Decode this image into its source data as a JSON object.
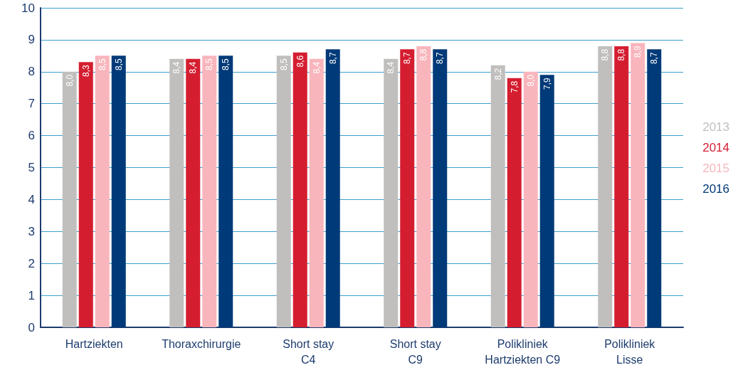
{
  "chart_data": {
    "type": "bar",
    "categories": [
      "Hartziekten",
      "Thoraxchirurgie",
      "Short stay\nC4",
      "Short stay\nC9",
      "Polikliniek\nHartziekten C9",
      "Polikliniek\nLisse"
    ],
    "series": [
      {
        "name": "2013",
        "color": "#c0bfbe",
        "values": [
          8.0,
          8.4,
          8.5,
          8.4,
          8.2,
          8.8
        ],
        "value_labels": [
          "8,0",
          "8,4",
          "8,5",
          "8,4",
          "8,2",
          "8,8"
        ]
      },
      {
        "name": "2014",
        "color": "#d41e30",
        "values": [
          8.3,
          8.4,
          8.6,
          8.7,
          7.8,
          8.8
        ],
        "value_labels": [
          "8,3",
          "8,4",
          "8,6",
          "8,7",
          "7,8",
          "8,8"
        ]
      },
      {
        "name": "2015",
        "color": "#f8b6bc",
        "values": [
          8.5,
          8.5,
          8.4,
          8.8,
          8.0,
          8.9
        ],
        "value_labels": [
          "8,5",
          "8,5",
          "8,4",
          "8,8",
          "8,0",
          "8,9"
        ]
      },
      {
        "name": "2016",
        "color": "#013a78",
        "values": [
          8.5,
          8.5,
          8.7,
          8.7,
          7.9,
          8.7
        ],
        "value_labels": [
          "8,5",
          "8,5",
          "8,7",
          "8,7",
          "7,9",
          "8,7"
        ]
      }
    ],
    "ylim": [
      0,
      10
    ],
    "yticks": [
      0,
      1,
      2,
      3,
      4,
      5,
      6,
      7,
      8,
      9,
      10
    ],
    "grid": "y",
    "legend": "right"
  }
}
